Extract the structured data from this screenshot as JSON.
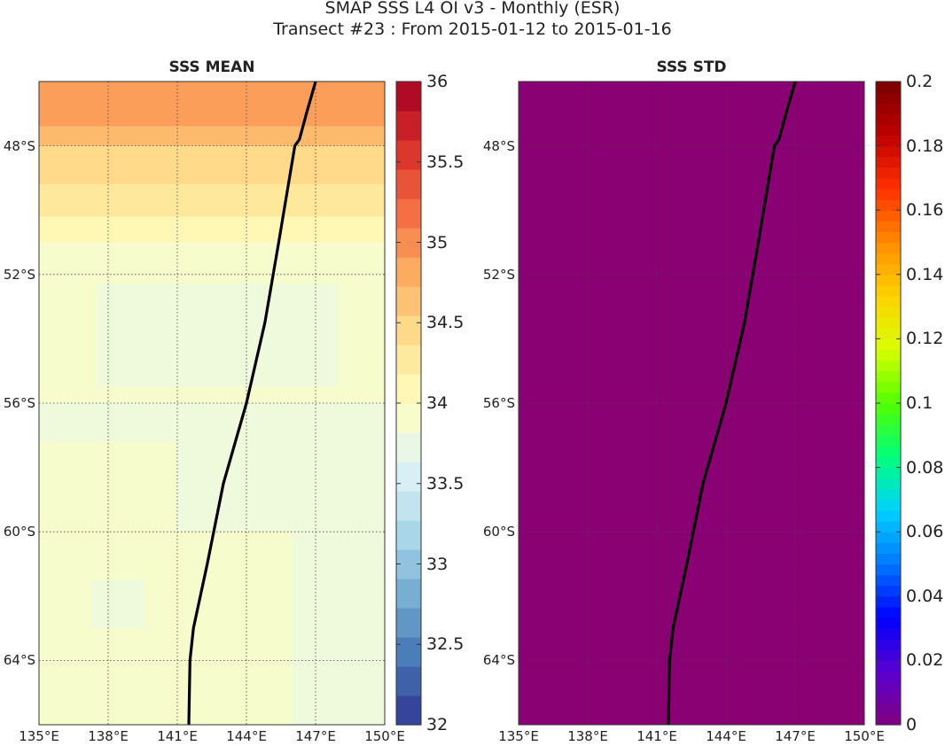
{
  "title": {
    "line1": "SMAP SSS L4 OI v3 - Monthly (ESR)",
    "line2": "Transect #23 : From 2015-01-12 to 2015-01-16"
  },
  "colors": {
    "std_fill": "#8a0174",
    "transect": "#000000",
    "rdylbu": [
      "#313695",
      "#4575b4",
      "#74add1",
      "#abd9e9",
      "#e0f3f8",
      "#ffffbf",
      "#fee090",
      "#fdae61",
      "#f46d43",
      "#d73027",
      "#a50026"
    ],
    "jet": [
      "#800080",
      "#5a00d0",
      "#0000ff",
      "#0078ff",
      "#00d2ff",
      "#00ff7c",
      "#52ff00",
      "#d8ff00",
      "#ffd200",
      "#ff8c00",
      "#ff3000",
      "#c00000",
      "#7a0000"
    ]
  },
  "maps": [
    {
      "title": "SSS MEAN",
      "lon_range": [
        135,
        150
      ],
      "lat_range": [
        -66,
        -46
      ],
      "x_ticks": [
        "135°E",
        "138°E",
        "141°E",
        "144°E",
        "147°E",
        "150°E"
      ],
      "y_ticks": [
        "48°S",
        "52°S",
        "56°S",
        "60°S",
        "64°S"
      ],
      "colorbar": {
        "min": 32,
        "max": 36,
        "tick_labels": [
          "32",
          "32.5",
          "33",
          "33.5",
          "34",
          "34.5",
          "35",
          "35.5",
          "36"
        ],
        "tick_values": [
          32,
          32.5,
          33,
          33.5,
          34,
          34.5,
          35,
          35.5,
          36
        ],
        "colormap": "RdYlBu_r"
      },
      "field_bands": [
        {
          "lat_from": -46.0,
          "lat_to": -47.4,
          "sss": 34.9
        },
        {
          "lat_from": -47.4,
          "lat_to": -48.0,
          "sss": 34.7
        },
        {
          "lat_from": -48.0,
          "lat_to": -49.2,
          "sss": 34.45
        },
        {
          "lat_from": -49.2,
          "lat_to": -50.2,
          "sss": 34.3
        },
        {
          "lat_from": -50.2,
          "lat_to": -51.0,
          "sss": 34.1
        },
        {
          "lat_from": -51.0,
          "lat_to": -66.0,
          "sss": 33.9
        }
      ],
      "field_patches": [
        {
          "lon_from": 137.5,
          "lon_to": 148.0,
          "lat_from": -52.3,
          "lat_to": -55.5,
          "sss": 33.8
        },
        {
          "lon_from": 135.0,
          "lon_to": 150.0,
          "lat_from": -56.0,
          "lat_to": -57.2,
          "sss": 33.8
        },
        {
          "lon_from": 141.0,
          "lon_to": 150.0,
          "lat_from": -57.2,
          "lat_to": -60.0,
          "sss": 33.8
        },
        {
          "lon_from": 146.0,
          "lon_to": 150.0,
          "lat_from": -60.0,
          "lat_to": -66.0,
          "sss": 33.8
        },
        {
          "lon_from": 137.3,
          "lon_to": 139.6,
          "lat_from": -61.5,
          "lat_to": -63.0,
          "sss": 33.8
        }
      ],
      "transect": {
        "lon": [
          141.5,
          141.55,
          141.7,
          142.3,
          143.0,
          144.0,
          144.8,
          145.4,
          146.1,
          146.3,
          146.6,
          147.0
        ],
        "lat": [
          -66.0,
          -64.0,
          -63.0,
          -61.0,
          -58.5,
          -56.0,
          -53.5,
          -51.0,
          -48.0,
          -47.8,
          -47.0,
          -46.0
        ]
      }
    },
    {
      "title": "SSS STD",
      "lon_range": [
        135,
        150
      ],
      "lat_range": [
        -66,
        -46
      ],
      "x_ticks": [
        "135°E",
        "138°E",
        "141°E",
        "144°E",
        "147°E",
        "150°E"
      ],
      "y_ticks": [
        "48°S",
        "52°S",
        "56°S",
        "60°S",
        "64°S"
      ],
      "colorbar": {
        "min": 0,
        "max": 0.2,
        "tick_labels": [
          "0",
          "0.02",
          "0.04",
          "0.06",
          "0.08",
          "0.1",
          "0.12",
          "0.14",
          "0.16",
          "0.18",
          "0.2"
        ],
        "tick_values": [
          0,
          0.02,
          0.04,
          0.06,
          0.08,
          0.1,
          0.12,
          0.14,
          0.16,
          0.18,
          0.2
        ],
        "colormap": "jet"
      },
      "field_value": 0,
      "transect": {
        "lon": [
          141.5,
          141.55,
          141.7,
          142.3,
          143.0,
          144.0,
          144.8,
          145.4,
          146.1,
          146.3,
          146.6,
          147.0
        ],
        "lat": [
          -66.0,
          -64.0,
          -63.0,
          -61.0,
          -58.5,
          -56.0,
          -53.5,
          -51.0,
          -48.0,
          -47.8,
          -47.0,
          -46.0
        ]
      }
    }
  ]
}
